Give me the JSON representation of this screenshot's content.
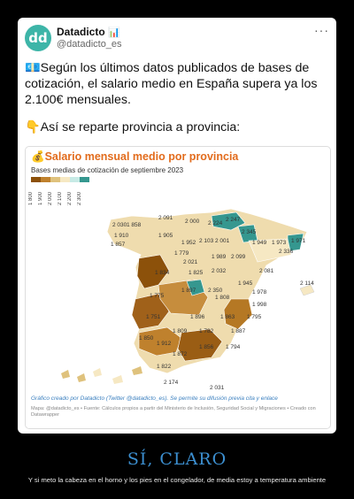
{
  "tweet": {
    "author_name": "Datadicto",
    "author_badge": "📊",
    "avatar_text": "dd",
    "handle": "@datadicto_es",
    "more": "···",
    "paragraphs": [
      "💶Según los últimos datos publicados de bases de cotización, el salario medio en España supera ya los 2.100€ mensuales.",
      "👇Así se reparte provincia a provincia:"
    ]
  },
  "card": {
    "title": "💰Salario mensual medio por provincia",
    "subtitle": "Bases medias de cotización de septiembre 2023",
    "legend": [
      {
        "label": "1 800",
        "color": "#8c510a"
      },
      {
        "label": "1 900",
        "color": "#bf812d"
      },
      {
        "label": "2 000",
        "color": "#dfc27d"
      },
      {
        "label": "2 100",
        "color": "#f6e8c3"
      },
      {
        "label": "2 200",
        "color": "#c7eae5"
      },
      {
        "label": "2 300",
        "color": "#35978f"
      }
    ],
    "credit": "Gráfico creado por Datadicto (Twitter @datadicto_es). Se permite su difusión previa cita y enlace",
    "source": "Mapa: @datadicto_es • Fuente: Cálculos propios a partir del Ministerio de Inclusión, Seguridad Social y Migraciones • Creado con Datawrapper"
  },
  "chart_data": {
    "type": "table",
    "title": "Salario mensual medio por provincia",
    "subtitle": "Bases medias de cotización de septiembre 2023",
    "legend_thresholds": [
      1800,
      1900,
      2000,
      2100,
      2200,
      2300
    ],
    "values": [
      "2 030",
      "1 858",
      "2 091",
      "2 000",
      "2 224",
      "2 247",
      "2 345",
      "1 910",
      "1 905",
      "1 857",
      "1 952",
      "2 103",
      "2 001",
      "1 949",
      "1 973",
      "1 971",
      "2 336",
      "1 779",
      "2 021",
      "1 989",
      "2 099",
      "1 825",
      "2 081",
      "1 834",
      "2 032",
      "1 945",
      "1 978",
      "2 114",
      "1 775",
      "1 897",
      "2 350",
      "1 808",
      "1 998",
      "1 751",
      "1 896",
      "1 863",
      "1 795",
      "1 809",
      "1 782",
      "1 887",
      "1 850",
      "1 912",
      "1 856",
      "1 794",
      "1 872",
      "1 822",
      "2 174",
      "2 031"
    ]
  },
  "caption": {
    "title": "SÍ, CLARO",
    "text": "Y si meto la cabeza en el horno y los pies en el congelador, de media estoy a temperatura ambiente"
  }
}
